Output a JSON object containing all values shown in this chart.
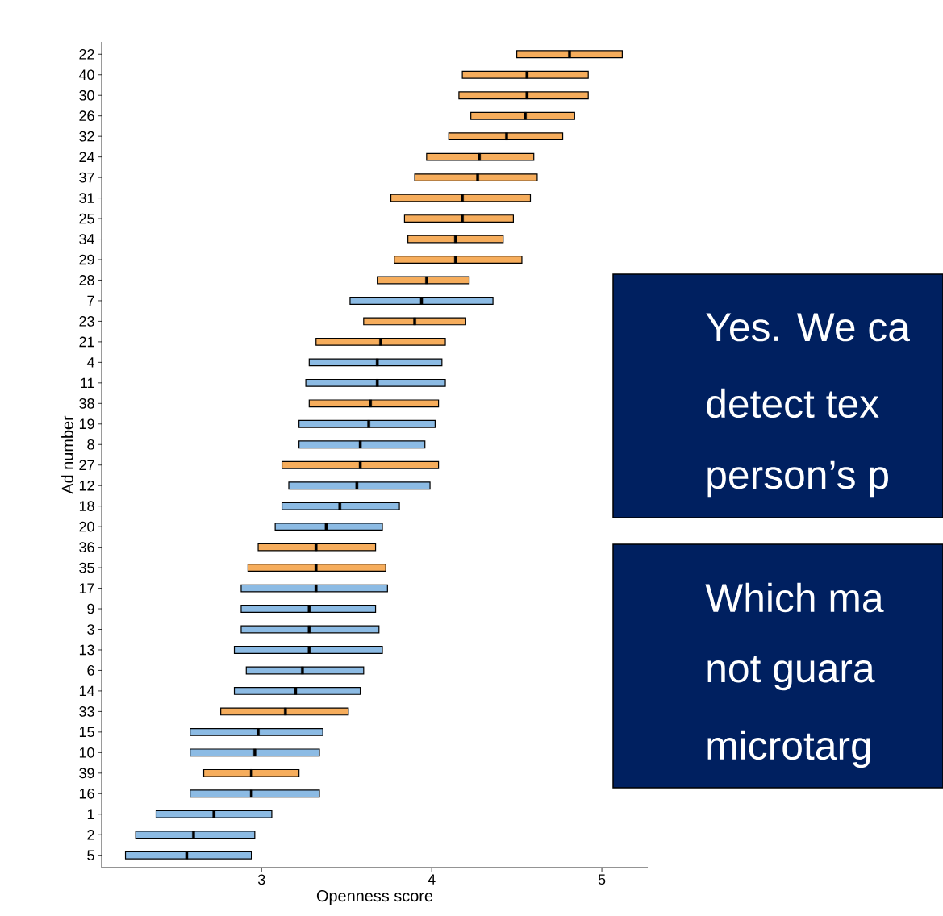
{
  "chart_data": {
    "type": "bar",
    "orientation": "horizontal",
    "xlabel": "Openness score",
    "ylabel": "Ad number",
    "categories": [
      "22",
      "40",
      "30",
      "26",
      "32",
      "24",
      "37",
      "31",
      "25",
      "34",
      "29",
      "28",
      "7",
      "23",
      "21",
      "4",
      "11",
      "38",
      "19",
      "8",
      "27",
      "12",
      "18",
      "20",
      "36",
      "35",
      "17",
      "9",
      "3",
      "13",
      "6",
      "14",
      "33",
      "15",
      "10",
      "39",
      "16",
      "1",
      "2",
      "5"
    ],
    "xlim": [
      2.06,
      5.27
    ],
    "xticks": [
      3,
      4,
      5
    ],
    "grid": false,
    "series": [
      {
        "color": "#f6ad5c",
        "base": [
          4.5,
          4.18,
          4.16,
          4.23,
          4.1,
          3.97,
          3.9,
          3.76,
          3.84,
          3.86,
          3.78,
          3.68,
          null,
          3.6,
          3.32,
          null,
          null,
          3.28,
          null,
          null,
          3.12,
          null,
          null,
          null,
          2.98,
          2.92,
          null,
          null,
          null,
          null,
          null,
          null,
          2.76,
          null,
          null,
          2.66,
          null,
          null,
          null,
          null
        ],
        "values": [
          0.62,
          0.74,
          0.76,
          0.61,
          0.67,
          0.63,
          0.72,
          0.82,
          0.64,
          0.56,
          0.75,
          0.54,
          null,
          0.6,
          0.76,
          null,
          null,
          0.76,
          null,
          null,
          0.92,
          null,
          null,
          null,
          0.69,
          0.81,
          null,
          null,
          null,
          null,
          null,
          null,
          0.75,
          null,
          null,
          0.56,
          null,
          null,
          null,
          null
        ]
      },
      {
        "color": "#8cbbe4",
        "base": [
          null,
          null,
          null,
          null,
          null,
          null,
          null,
          null,
          null,
          null,
          null,
          null,
          3.52,
          null,
          null,
          3.28,
          3.26,
          null,
          3.22,
          3.22,
          null,
          3.16,
          3.12,
          3.08,
          null,
          null,
          2.88,
          2.88,
          2.88,
          2.84,
          2.91,
          2.84,
          null,
          2.58,
          2.58,
          null,
          2.58,
          2.38,
          2.26,
          2.2
        ],
        "values": [
          null,
          null,
          null,
          null,
          null,
          null,
          null,
          null,
          null,
          null,
          null,
          null,
          0.84,
          null,
          null,
          0.78,
          0.82,
          null,
          0.8,
          0.74,
          null,
          0.83,
          0.69,
          0.63,
          null,
          null,
          0.86,
          0.79,
          0.81,
          0.87,
          0.69,
          0.74,
          null,
          0.78,
          0.76,
          null,
          0.76,
          0.68,
          0.7,
          0.74
        ]
      },
      {
        "type": "scatter",
        "marker": "square",
        "color": "#000000",
        "values": [
          4.81,
          4.56,
          4.56,
          4.55,
          4.44,
          4.28,
          4.27,
          4.18,
          4.18,
          4.14,
          4.14,
          3.97,
          3.94,
          3.9,
          3.7,
          3.68,
          3.68,
          3.64,
          3.63,
          3.58,
          3.58,
          3.56,
          3.46,
          3.38,
          3.32,
          3.32,
          3.32,
          3.28,
          3.28,
          3.28,
          3.24,
          3.2,
          3.14,
          2.98,
          2.96,
          2.94,
          2.94,
          2.72,
          2.6,
          2.56
        ]
      }
    ],
    "annotations": [
      "Yes. We ca",
      "detect tex",
      "person’s p",
      "Which ma",
      "not guara",
      "microtarg"
    ]
  }
}
